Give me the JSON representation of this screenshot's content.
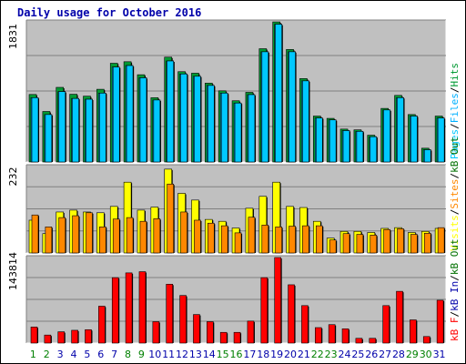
{
  "title": "Daily usage for October 2016",
  "colors": {
    "hits": "#009933",
    "files": "#00b0ff",
    "pages": "#00c8ff",
    "visits": "#ffff00",
    "sites": "#ff8800",
    "kbin": "#007000",
    "kbout": "#0000aa",
    "kbf": "#ff0000",
    "panel_bg": "#c0c0c0",
    "frame_bg": "#ffffff",
    "weekday_label": "#0000aa",
    "weekend_label": "#008000"
  },
  "chart_data": [
    {
      "type": "bar",
      "panel": "hits-files-pages",
      "ymax_label": "1831",
      "ylim": [
        0,
        1831
      ],
      "legend": [
        "Pages",
        "/",
        "Files",
        "/",
        "Hits"
      ],
      "categories": [
        "1",
        "2",
        "3",
        "4",
        "5",
        "6",
        "7",
        "8",
        "9",
        "10",
        "11",
        "12",
        "13",
        "14",
        "15",
        "16",
        "17",
        "18",
        "19",
        "20",
        "21",
        "22",
        "23",
        "24",
        "25",
        "26",
        "27",
        "28",
        "29",
        "30",
        "31"
      ],
      "series": [
        {
          "name": "Hits",
          "values": [
            882,
            660,
            975,
            885,
            860,
            950,
            1290,
            1310,
            1140,
            840,
            1370,
            1180,
            1160,
            1030,
            930,
            800,
            910,
            1480,
            1830,
            1470,
            1090,
            600,
            570,
            430,
            420,
            350,
            700,
            870,
            620,
            180,
            600
          ]
        },
        {
          "name": "Files",
          "values": [
            840,
            620,
            920,
            830,
            820,
            900,
            1240,
            1260,
            1100,
            810,
            1320,
            1150,
            1120,
            1000,
            900,
            770,
            880,
            1440,
            1800,
            1440,
            1060,
            575,
            550,
            410,
            400,
            330,
            680,
            840,
            600,
            160,
            575
          ]
        },
        {
          "name": "Pages",
          "values": [
            840,
            620,
            920,
            830,
            820,
            900,
            1240,
            1260,
            1100,
            810,
            1320,
            1150,
            1120,
            1000,
            900,
            770,
            880,
            1440,
            1800,
            1440,
            1060,
            575,
            550,
            410,
            400,
            330,
            680,
            840,
            600,
            160,
            575
          ]
        }
      ]
    },
    {
      "type": "bar",
      "panel": "visits-sites",
      "ymax_label": "232",
      "ylim": [
        0,
        232
      ],
      "legend": [
        "Visits",
        "/",
        "Sites",
        "/",
        "kB Out"
      ],
      "categories": [
        "1",
        "2",
        "3",
        "4",
        "5",
        "6",
        "7",
        "8",
        "9",
        "10",
        "11",
        "12",
        "13",
        "14",
        "15",
        "16",
        "17",
        "18",
        "19",
        "20",
        "21",
        "22",
        "23",
        "24",
        "25",
        "26",
        "27",
        "28",
        "29",
        "30",
        "31"
      ],
      "series": [
        {
          "name": "Visits",
          "values": [
            88,
            52,
            110,
            115,
            110,
            108,
            125,
            190,
            115,
            123,
            225,
            160,
            142,
            90,
            85,
            67,
            120,
            152,
            190,
            125,
            122,
            85,
            40,
            58,
            58,
            55,
            66,
            68,
            55,
            58,
            66
          ]
        },
        {
          "name": "Sites",
          "values": [
            102,
            70,
            95,
            100,
            108,
            70,
            91,
            95,
            85,
            92,
            185,
            110,
            88,
            80,
            73,
            54,
            96,
            75,
            70,
            72,
            73,
            73,
            35,
            52,
            50,
            48,
            63,
            65,
            50,
            53,
            68
          ]
        }
      ]
    },
    {
      "type": "bar",
      "panel": "kbf",
      "ymax_label": "143814",
      "ylim": [
        0,
        143814
      ],
      "legend": [
        "kB F",
        "/",
        "kB In",
        "/",
        "kB Out"
      ],
      "categories": [
        "1",
        "2",
        "3",
        "4",
        "5",
        "6",
        "7",
        "8",
        "9",
        "10",
        "11",
        "12",
        "13",
        "14",
        "15",
        "16",
        "17",
        "18",
        "19",
        "20",
        "21",
        "22",
        "23",
        "24",
        "25",
        "26",
        "27",
        "28",
        "29",
        "30",
        "31"
      ],
      "series": [
        {
          "name": "kB F",
          "values": [
            27000,
            13500,
            19000,
            21500,
            22500,
            62000,
            110000,
            118000,
            120000,
            36000,
            99000,
            80000,
            48000,
            36000,
            18000,
            18000,
            37000,
            110000,
            143814,
            98000,
            63000,
            26000,
            31000,
            24000,
            8000,
            8000,
            63000,
            87000,
            39000,
            11000,
            72000
          ]
        }
      ]
    }
  ]
}
